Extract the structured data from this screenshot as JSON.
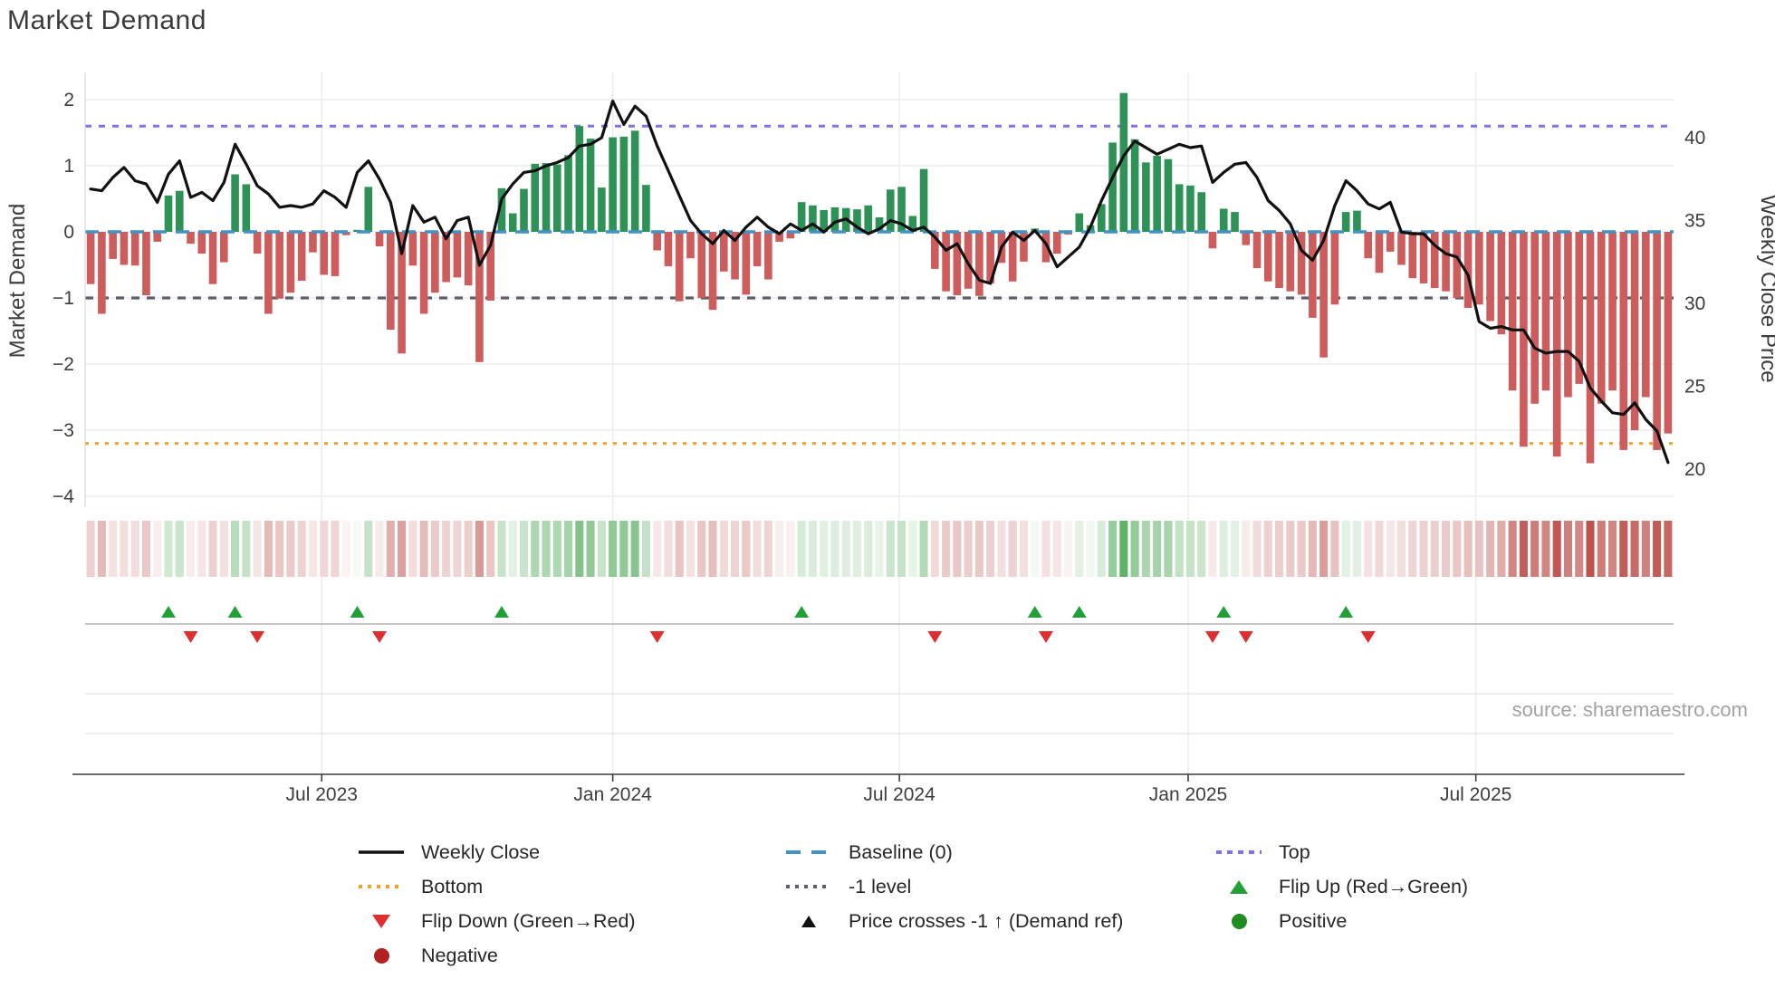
{
  "title": "Market Demand",
  "source_text": "source: sharemaestro.com",
  "axes": {
    "left_label": "Market Demand",
    "right_label": "Weekly Close Price",
    "left_ticks": [
      "2",
      "1",
      "0",
      "−1",
      "−2",
      "−3",
      "−4"
    ],
    "left_tick_values": [
      2,
      1,
      0,
      -1,
      -2,
      -3,
      -4
    ],
    "right_ticks": [
      "40",
      "35",
      "30",
      "25",
      "20"
    ],
    "right_tick_values": [
      40,
      35,
      30,
      25,
      20
    ],
    "x_ticks": [
      "Jul 2023",
      "Jan 2024",
      "Jul 2024",
      "Jan 2025",
      "Jul 2025"
    ]
  },
  "colors": {
    "positive_bar": "#2e9257",
    "negative_bar": "#cd5c5c",
    "price_line": "#111111",
    "baseline_line": "#4292c6",
    "top_line": "#7b74e8",
    "bottom_line": "#f5a02a",
    "minus_one_line": "#5c6068",
    "flip_up_marker": "#21a038",
    "flip_down_marker": "#dc2f2f",
    "positive_dot": "#1e8c1e",
    "negative_dot": "#b22222",
    "grid": "#ececec",
    "marker_row_line": "#b3b3b3",
    "axis_line": "#3c3c3c"
  },
  "legend": {
    "weekly_close": "Weekly Close",
    "baseline": "Baseline (0)",
    "top": "Top",
    "bottom": "Bottom",
    "minus_one": "-1 level",
    "flip_up": "Flip Up (Red→Green)",
    "flip_down": "Flip Down (Green→Red)",
    "price_cross": "Price crosses -1 ↑ (Demand ref)",
    "positive": "Positive",
    "negative": "Negative"
  },
  "chart_data": {
    "type": "bar+line",
    "title": "Market Demand",
    "x_unit": "week",
    "weeks": 143,
    "start_period": "Feb 2023",
    "end_period": "Nov 2025",
    "legend_position": "bottom center",
    "grid": "on",
    "ylim_left": [
      -4.35,
      2.4
    ],
    "right_axis_label_values": [
      40,
      35,
      30,
      25,
      20
    ],
    "reference_levels": {
      "baseline": 0,
      "top": 1.6,
      "bottom": -3.2,
      "minus_one": -1
    },
    "x_tick_labels": [
      "Jul 2023",
      "Jan 2024",
      "Jul 2024",
      "Jan 2025",
      "Jul 2025"
    ],
    "x_tick_week_index": [
      20.8,
      47.0,
      72.8,
      98.8,
      124.7
    ],
    "flip_up_weeks": [
      8,
      14,
      25,
      38,
      65,
      86,
      90,
      103,
      114
    ],
    "flip_down_weeks": [
      10,
      16,
      27,
      52,
      77,
      87,
      102,
      105,
      116
    ],
    "series": [
      {
        "name": "Market Demand",
        "type": "bar",
        "values": [
          -0.79,
          -1.24,
          -0.41,
          -0.5,
          -0.51,
          -0.96,
          -0.15,
          0.55,
          0.62,
          -0.18,
          -0.33,
          -0.79,
          -0.46,
          0.87,
          0.72,
          -0.33,
          -1.24,
          -1.01,
          -0.92,
          -0.74,
          -0.31,
          -0.65,
          -0.67,
          -0.05,
          0.03,
          0.68,
          -0.22,
          -1.48,
          -1.84,
          -0.51,
          -1.24,
          -0.92,
          -0.76,
          -0.69,
          -0.81,
          -1.97,
          -1.04,
          0.66,
          0.28,
          0.65,
          1.03,
          1.04,
          1.02,
          1.16,
          1.6,
          1.41,
          0.67,
          1.43,
          1.44,
          1.53,
          0.71,
          -0.28,
          -0.52,
          -1.05,
          -0.4,
          -1.0,
          -1.18,
          -0.6,
          -0.72,
          -0.95,
          -0.52,
          -0.72,
          -0.15,
          -0.1,
          0.45,
          0.4,
          0.33,
          0.37,
          0.36,
          0.34,
          0.4,
          0.22,
          0.64,
          0.68,
          0.24,
          0.95,
          -0.56,
          -0.9,
          -0.96,
          -0.86,
          -0.97,
          -0.78,
          -0.47,
          -0.75,
          -0.45,
          0.05,
          -0.46,
          -0.33,
          -0.04,
          0.28,
          0.1,
          0.42,
          1.35,
          2.1,
          1.4,
          1.05,
          1.15,
          1.1,
          0.72,
          0.7,
          0.6,
          -0.25,
          0.35,
          0.3,
          -0.2,
          -0.55,
          -0.75,
          -0.85,
          -0.9,
          -0.95,
          -1.3,
          -1.9,
          -1.1,
          0.3,
          0.32,
          -0.4,
          -0.62,
          -0.3,
          -0.5,
          -0.7,
          -0.78,
          -0.85,
          -0.9,
          -1.0,
          -1.15,
          -1.1,
          -1.35,
          -1.55,
          -2.4,
          -3.25,
          -2.6,
          -2.4,
          -3.4,
          -2.5,
          -2.3,
          -3.5,
          -2.6,
          -2.4,
          -3.3,
          -3.0,
          -2.5,
          -3.3,
          -3.05
        ]
      },
      {
        "name": "Weekly Close",
        "type": "line",
        "axis": "right",
        "values": [
          36.9,
          36.8,
          37.6,
          38.2,
          37.4,
          37.2,
          36.1,
          37.8,
          38.6,
          36.4,
          36.7,
          36.2,
          37.3,
          39.6,
          38.4,
          37.1,
          36.6,
          35.8,
          35.9,
          35.8,
          36.0,
          36.8,
          36.4,
          35.8,
          37.9,
          38.6,
          37.5,
          36.1,
          33.0,
          35.9,
          34.9,
          35.2,
          33.9,
          35.0,
          35.2,
          32.3,
          33.5,
          36.3,
          37.2,
          37.9,
          38.0,
          38.3,
          38.5,
          38.8,
          39.5,
          39.6,
          40.0,
          42.2,
          40.8,
          41.9,
          41.3,
          39.5,
          38.0,
          36.5,
          35.0,
          34.2,
          33.6,
          34.4,
          33.8,
          34.6,
          35.2,
          34.6,
          34.2,
          34.8,
          34.4,
          34.8,
          34.3,
          34.9,
          35.1,
          34.6,
          34.2,
          34.5,
          35.0,
          34.8,
          34.4,
          34.6,
          34.0,
          33.2,
          33.6,
          32.4,
          31.4,
          31.2,
          33.4,
          34.3,
          33.8,
          34.4,
          33.6,
          32.2,
          32.8,
          33.4,
          34.6,
          36.2,
          37.6,
          38.9,
          39.8,
          39.4,
          39.0,
          39.3,
          39.6,
          39.4,
          39.5,
          37.3,
          37.9,
          38.4,
          38.5,
          37.6,
          36.2,
          35.6,
          34.8,
          33.2,
          32.6,
          33.8,
          35.9,
          37.4,
          36.8,
          36.0,
          35.7,
          36.1,
          34.3,
          34.2,
          34.2,
          33.5,
          33.0,
          32.8,
          31.7,
          28.9,
          28.5,
          28.6,
          28.4,
          28.4,
          27.3,
          27.0,
          27.1,
          27.1,
          26.5,
          24.9,
          24.1,
          23.4,
          23.3,
          24.0,
          23.0,
          22.3,
          20.4
        ]
      }
    ],
    "heatmap_strip": "one cell per week, red shade for negative demand, green shade for positive demand, intensity proportional to magnitude"
  }
}
